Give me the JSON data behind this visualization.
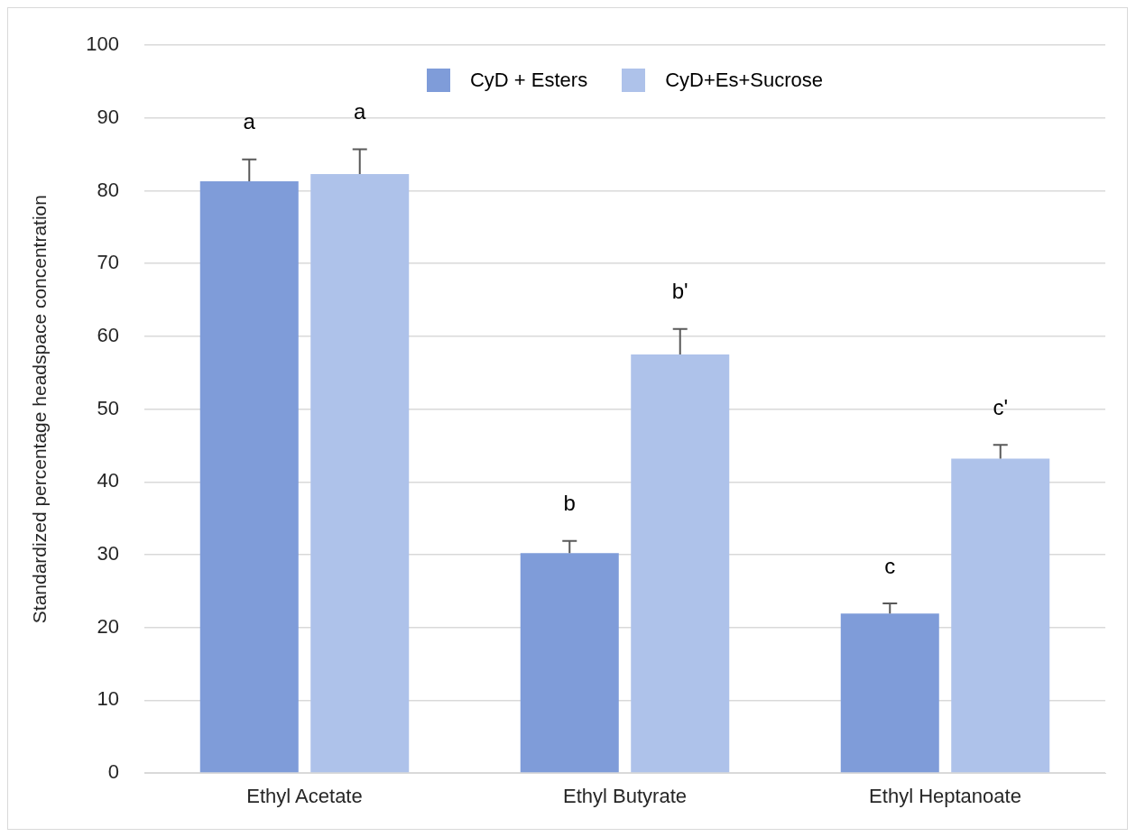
{
  "chart_data": {
    "type": "bar",
    "ylabel": "Standardized percentage headspace concentration",
    "categories": [
      "Ethyl Acetate",
      "Ethyl Butyrate",
      "Ethyl Heptanoate"
    ],
    "series": [
      {
        "name": "CyD + Esters",
        "color": "#7f9cd9",
        "values": [
          81.3,
          30.2,
          21.9
        ],
        "errors": [
          [
            81.3,
            84.3
          ],
          [
            30.2,
            31.9
          ],
          [
            21.9,
            23.3
          ]
        ],
        "value_labels": [
          "a",
          "b",
          "c"
        ]
      },
      {
        "name": "CyD+Es+Sucrose",
        "color": "#aec2ea",
        "values": [
          82.3,
          57.5,
          43.2
        ],
        "errors": [
          [
            82.3,
            85.7
          ],
          [
            57.5,
            61.0
          ],
          [
            43.2,
            45.1
          ]
        ],
        "value_labels": [
          "a",
          "b'",
          "c'"
        ]
      }
    ],
    "ylim": [
      0,
      100
    ],
    "yticks": [
      0,
      10,
      20,
      30,
      40,
      50,
      60,
      70,
      80,
      90,
      100
    ],
    "grid": "y",
    "legend": "top"
  }
}
